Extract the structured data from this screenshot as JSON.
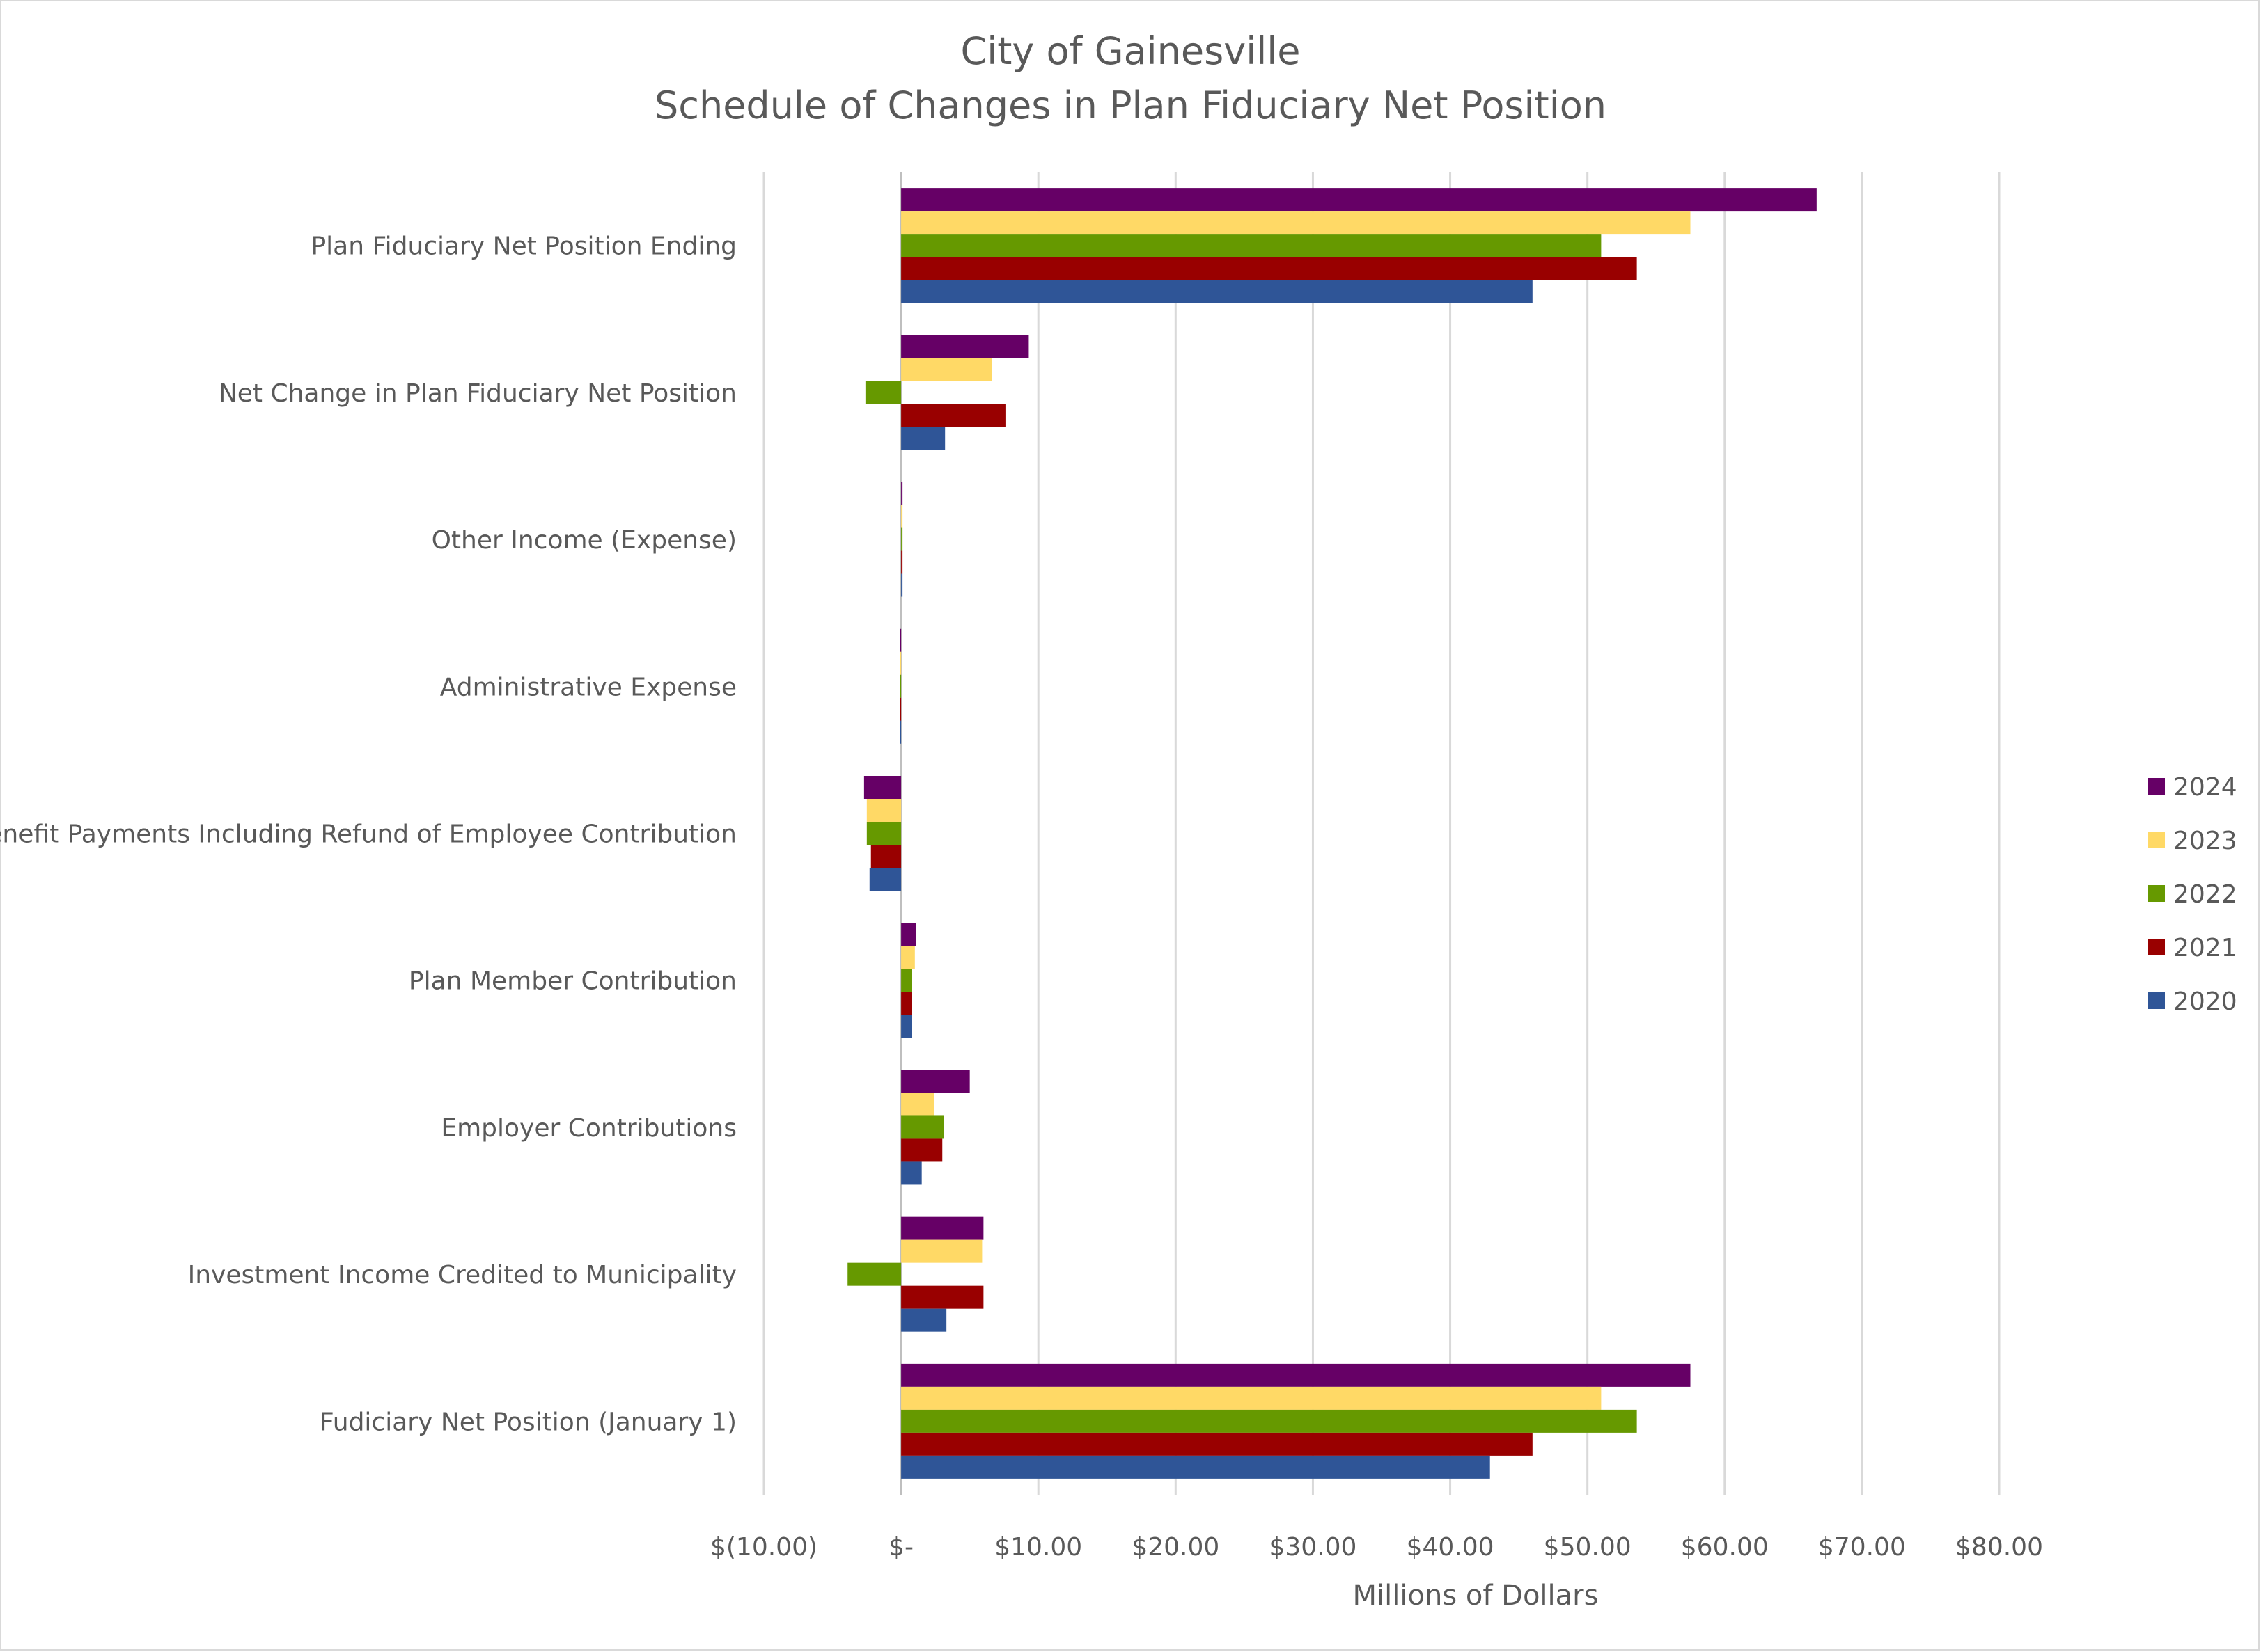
{
  "chart_data": {
    "type": "bar",
    "orientation": "horizontal",
    "title": "City of Gainesville",
    "subtitle": "Schedule of Changes in Plan Fiduciary Net Position",
    "xlabel": "Millions of Dollars",
    "ylabel": "",
    "xlim": [
      -10,
      80
    ],
    "x_ticks": [
      -10,
      0,
      10,
      20,
      30,
      40,
      50,
      60,
      70,
      80
    ],
    "x_tick_labels": [
      "$(10.00)",
      "$-",
      "$10.00",
      "$20.00",
      "$30.00",
      "$40.00",
      "$50.00",
      "$60.00",
      "$70.00",
      "$80.00"
    ],
    "grid": "vertical",
    "legend_position": "right",
    "categories": [
      "Plan Fiduciary Net Position Ending",
      "Net Change in Plan Fiduciary Net Position",
      "Other Income (Expense)",
      "Administrative Expense",
      "Benefit Payments Including Refund of Employee Contribution",
      "Plan Member Contribution",
      "Employer Contributions",
      "Investment Income Credited to Municipality",
      "Fudiciary Net Position (January 1)"
    ],
    "series": [
      {
        "name": "2024",
        "color": "#660066",
        "values": [
          66.7,
          9.3,
          0.05,
          -0.1,
          -2.7,
          1.1,
          5.0,
          6.0,
          57.5
        ]
      },
      {
        "name": "2023",
        "color": "#ffd966",
        "values": [
          57.5,
          6.6,
          0.05,
          -0.1,
          -2.5,
          1.0,
          2.4,
          5.9,
          51.0
        ]
      },
      {
        "name": "2022",
        "color": "#669900",
        "values": [
          51.0,
          -2.6,
          0.05,
          -0.1,
          -2.5,
          0.8,
          3.1,
          -3.9,
          53.6
        ]
      },
      {
        "name": "2021",
        "color": "#990000",
        "values": [
          53.6,
          7.6,
          0.05,
          -0.1,
          -2.2,
          0.8,
          3.0,
          6.0,
          46.0
        ]
      },
      {
        "name": "2020",
        "color": "#2f5597",
        "values": [
          46.0,
          3.2,
          0.05,
          -0.1,
          -2.3,
          0.8,
          1.5,
          3.3,
          42.9
        ]
      }
    ]
  }
}
